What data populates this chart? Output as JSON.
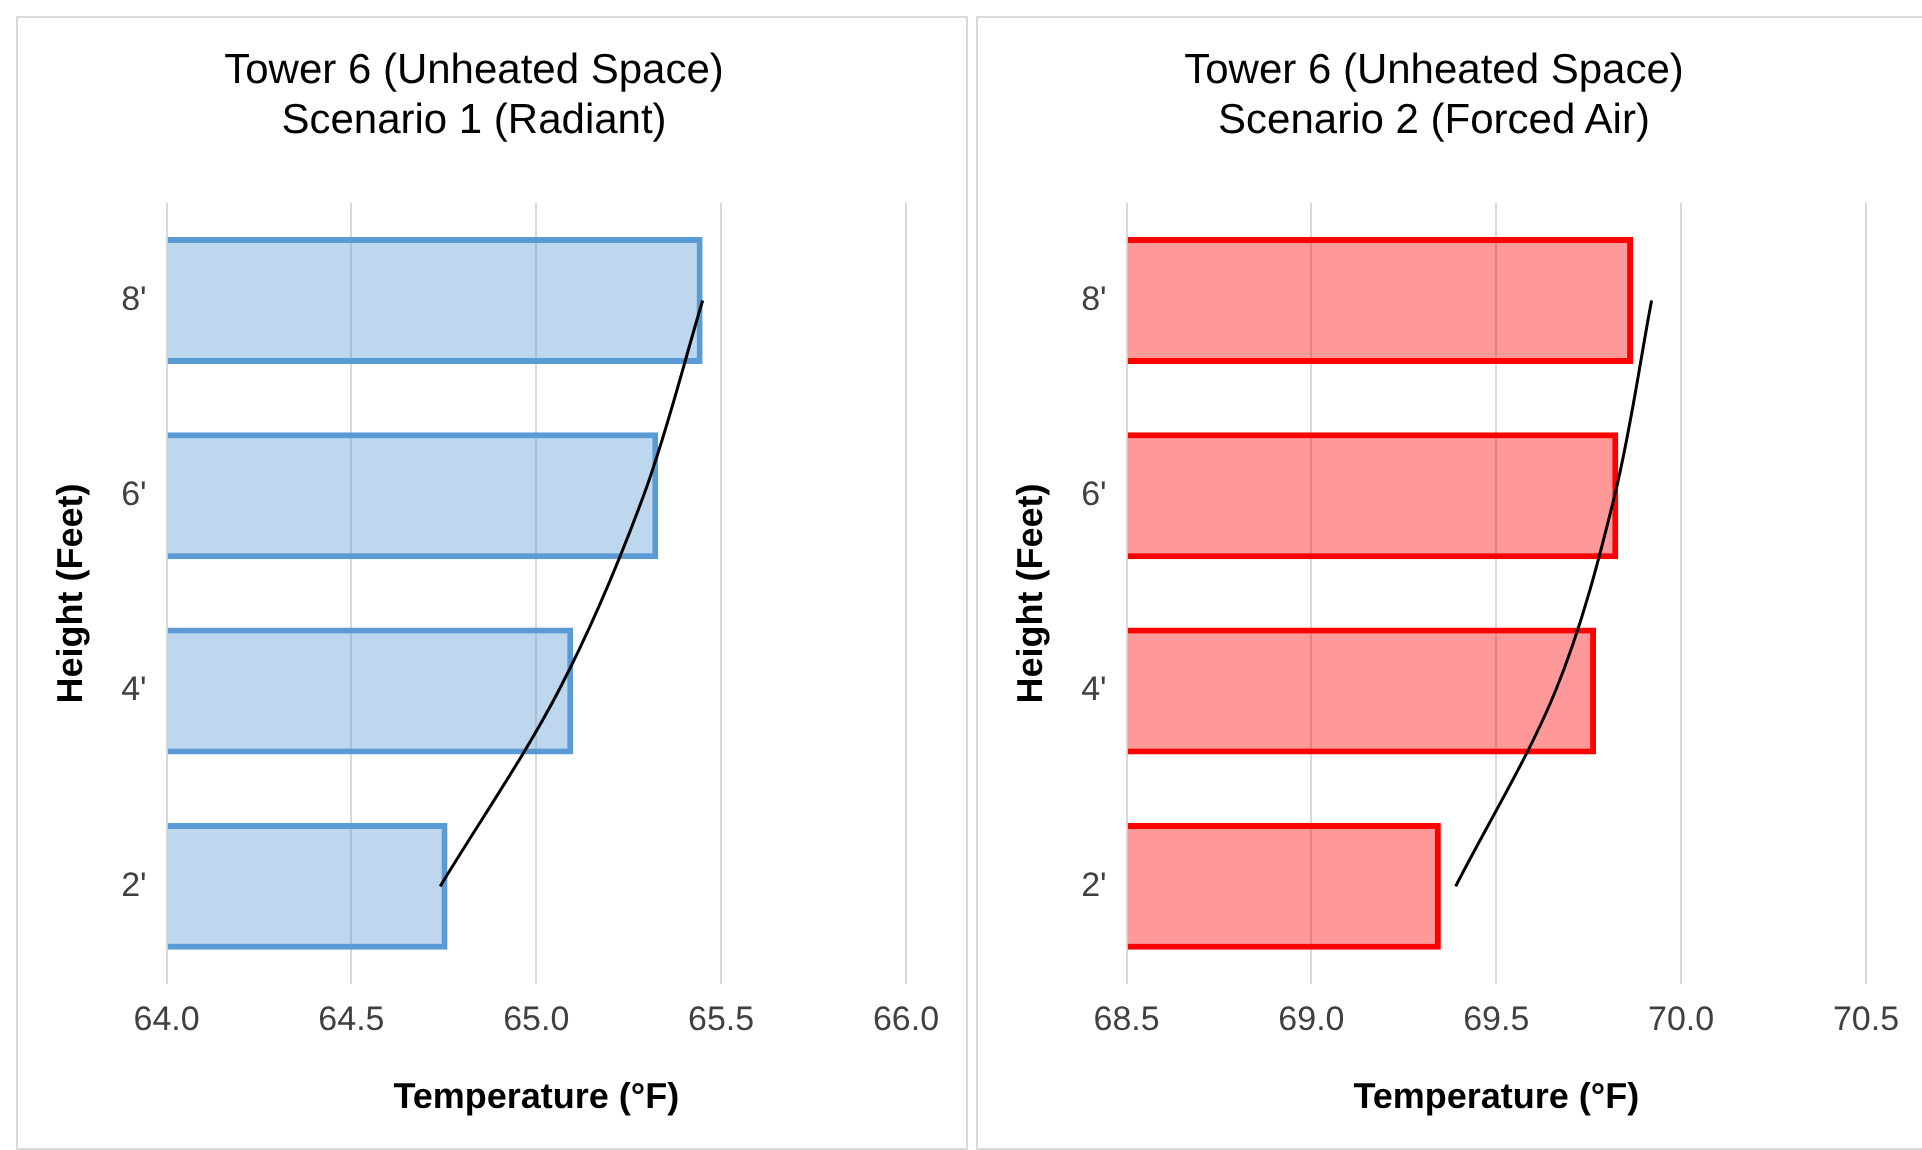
{
  "chart_data": [
    {
      "type": "bar",
      "orientation": "horizontal",
      "title": "Tower 6 (Unheated Space)",
      "subtitle": "Scenario 1 (Radiant)",
      "xlabel": "Temperature (°F)",
      "ylabel": "Height (Feet)",
      "categories": [
        "8'",
        "6'",
        "4'",
        "2'"
      ],
      "series": [
        {
          "color": "#5b9bd5",
          "values": [
            65.45,
            65.33,
            65.1,
            64.76
          ]
        },
        {
          "type": "line",
          "color": "#000000",
          "values": [
            65.45,
            65.29,
            65.06,
            64.74
          ]
        }
      ],
      "xlim": [
        64.0,
        66.0
      ],
      "xticks": [
        {
          "value": 64,
          "label": "64.0"
        },
        {
          "value": 64.5,
          "label": "64.5"
        },
        {
          "value": 65,
          "label": "65.0"
        },
        {
          "value": 65.5,
          "label": "65.5"
        },
        {
          "value": 66,
          "label": "66.0"
        }
      ],
      "grid": "x",
      "marker": "none"
    },
    {
      "type": "bar",
      "orientation": "horizontal",
      "title": "Tower 6 (Unheated Space)",
      "subtitle": "Scenario 2 (Forced Air)",
      "xlabel": "Temperature (°F)",
      "ylabel": "Height (Feet)",
      "categories": [
        "8'",
        "6'",
        "4'",
        "2'"
      ],
      "series": [
        {
          "color": "#ff0000",
          "values": [
            69.87,
            69.83,
            69.77,
            69.35
          ]
        },
        {
          "type": "line",
          "color": "#000000",
          "values": [
            69.92,
            69.82,
            69.66,
            69.39
          ]
        }
      ],
      "xlim": [
        68.5,
        70.5
      ],
      "xticks": [
        {
          "value": 68.5,
          "label": "68.5"
        },
        {
          "value": 69,
          "label": "69.0"
        },
        {
          "value": 69.5,
          "label": "69.5"
        },
        {
          "value": 70,
          "label": "70.0"
        },
        {
          "value": 70.5,
          "label": "70.5"
        }
      ],
      "grid": "x",
      "marker": "none"
    }
  ]
}
